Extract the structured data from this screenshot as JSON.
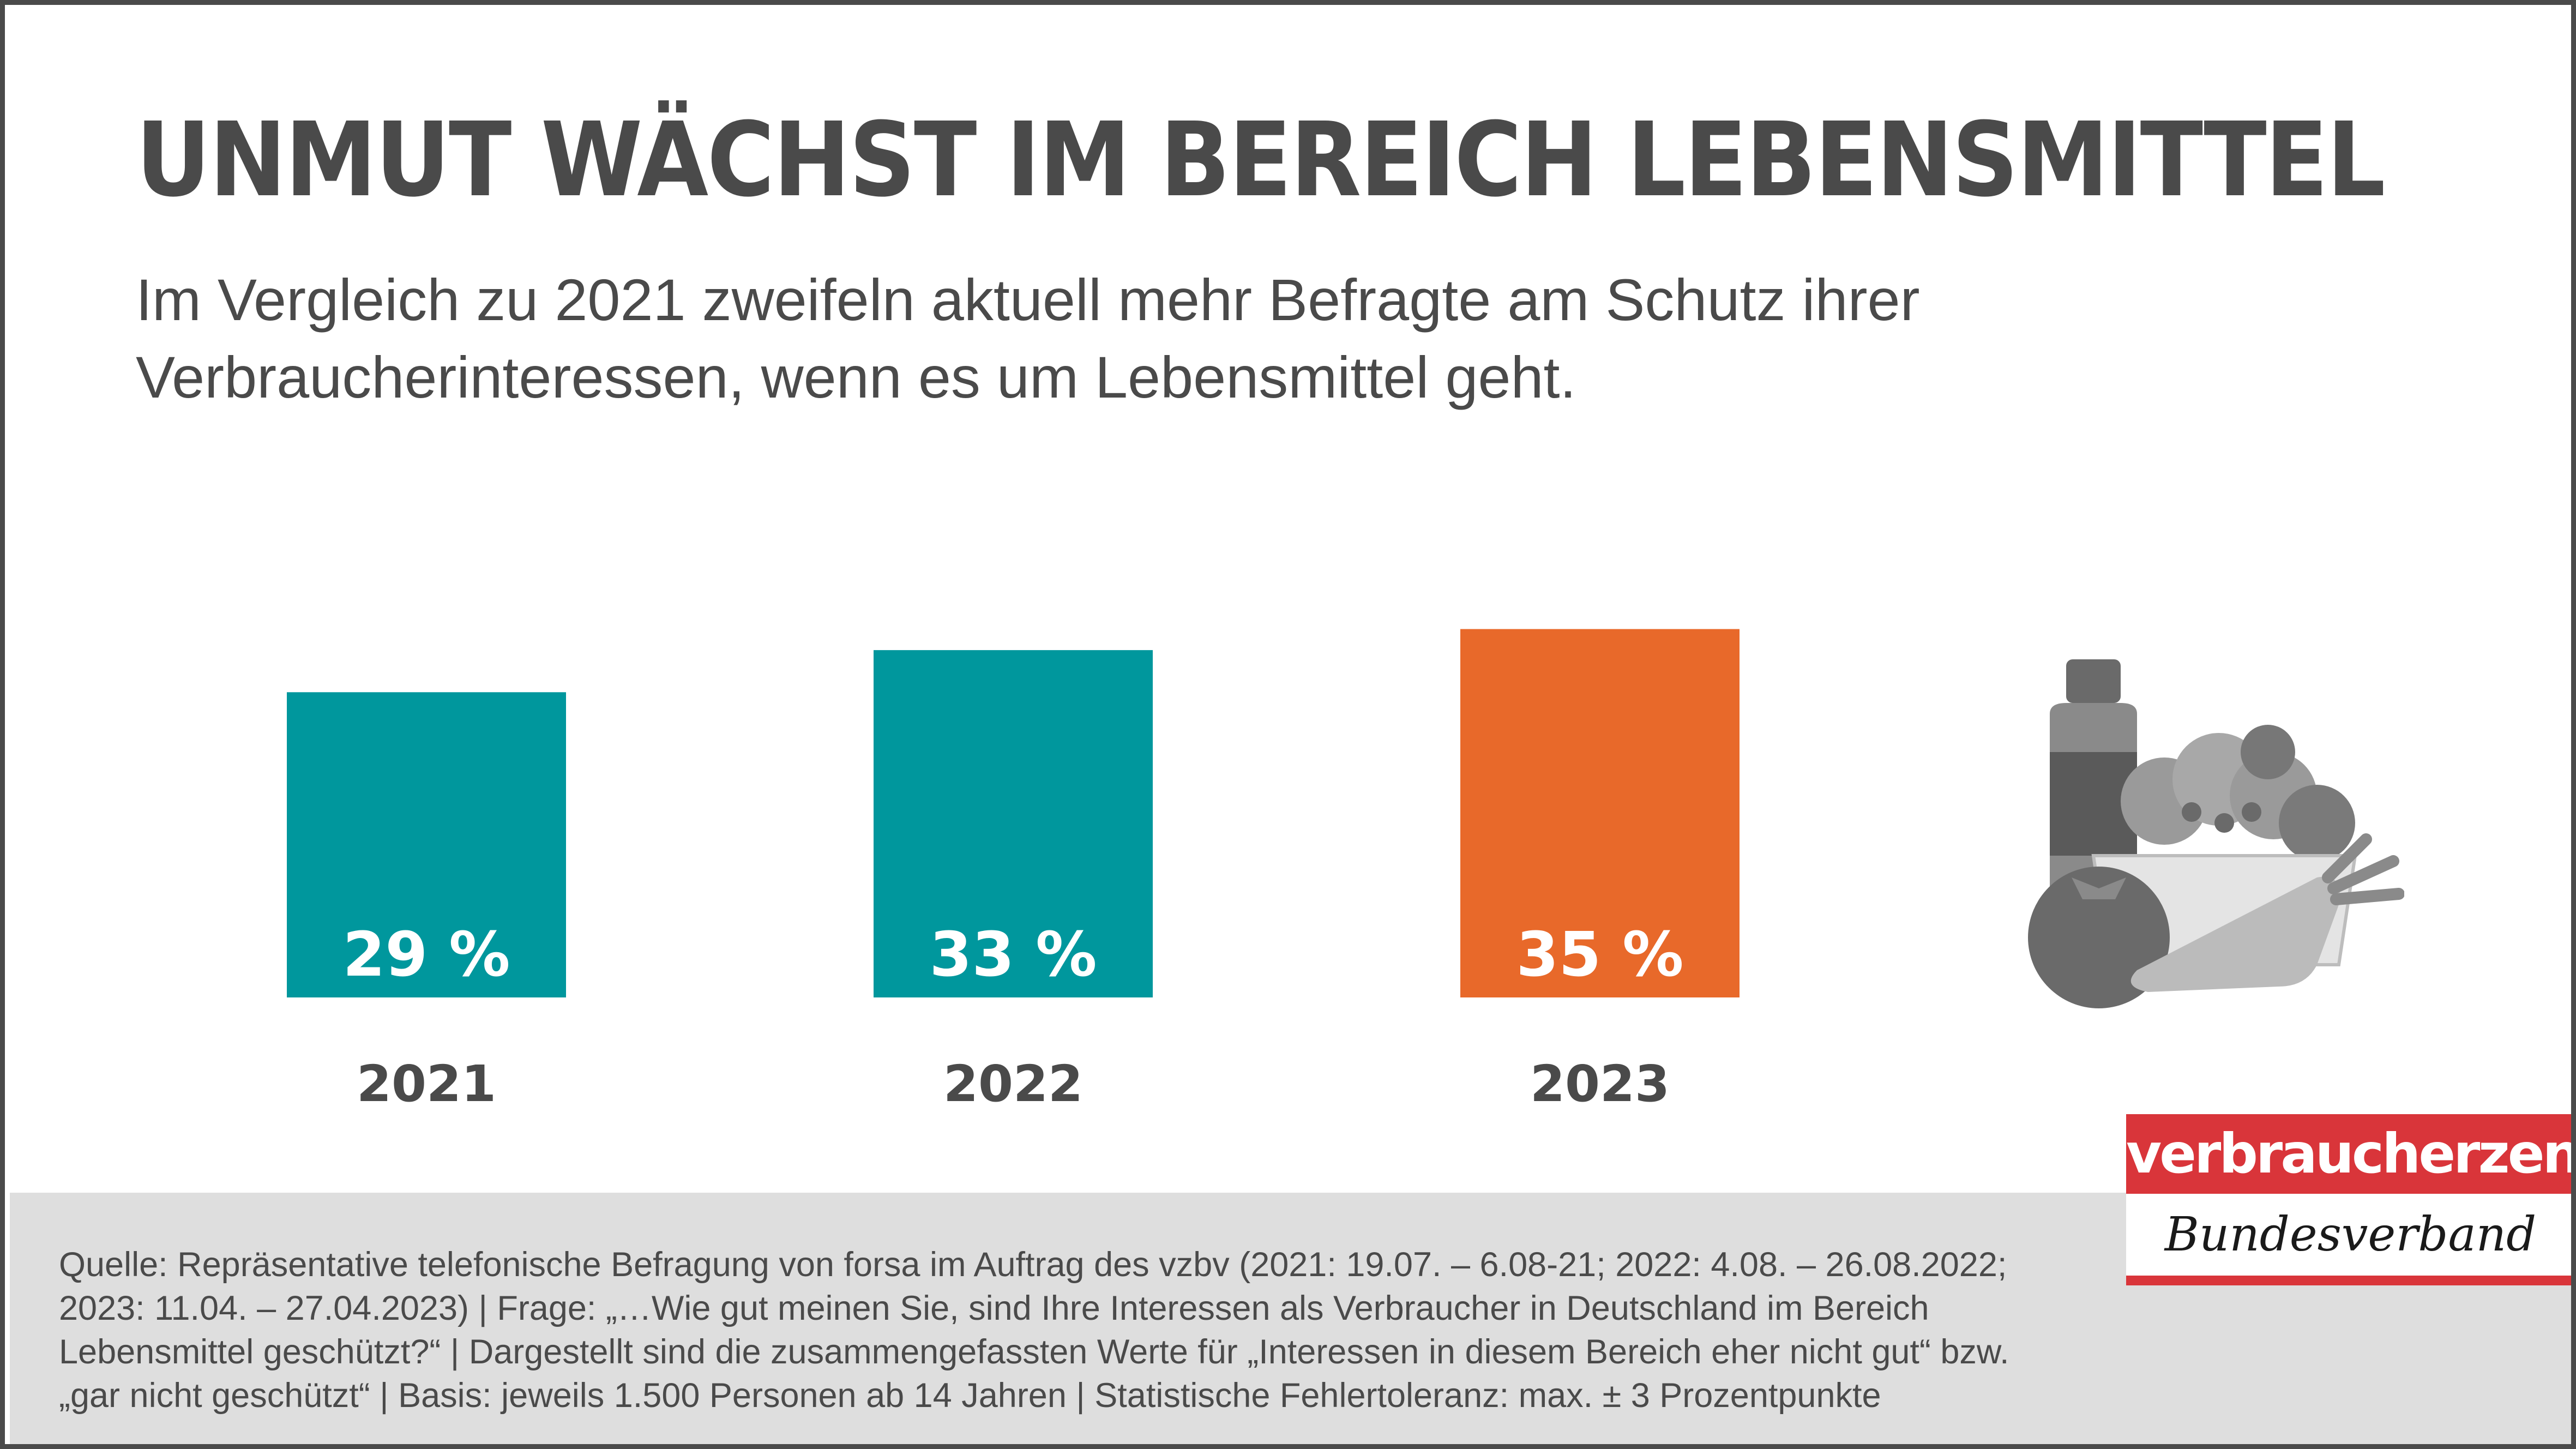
{
  "header": {
    "title": "UNMUT WÄCHST IM BEREICH LEBENSMITTEL",
    "subtitle": "Im Vergleich zu 2021 zweifeln aktuell mehr Befragte am Schutz ihrer Verbraucherinteressen, wenn es um Lebensmittel geht."
  },
  "chart_data": {
    "type": "bar",
    "categories": [
      "2021",
      "2022",
      "2023"
    ],
    "values": [
      29,
      33,
      35
    ],
    "value_labels": [
      "29 %",
      "33 %",
      "35 %"
    ],
    "colors": [
      "#00979d",
      "#00979d",
      "#e8692a"
    ],
    "unit": "%",
    "grid": false,
    "legend": "none"
  },
  "footer": {
    "source": "Quelle: Repräsentative telefonische Befragung von forsa im Auftrag des vzbv (2021: 19.07. – 6.08-21; 2022: 4.08. – 26.08.2022; 2023: 11.04. – 27.04.2023) | Frage: „…Wie gut meinen Sie, sind Ihre Interessen als Verbraucher in Deutschland im Bereich Lebensmittel geschützt?“ | Dargestellt sind die zusammengefassten Werte für „Interessen in diesem Bereich eher nicht gut“ bzw. „gar nicht geschützt“ | Basis: jeweils 1.500 Personen ab 14 Jahren | Statistische Fehlertoleranz: max. ± 3 Prozentpunkte"
  },
  "logo": {
    "line1": "verbraucherzentrale",
    "line2": "Bundesverband",
    "color": "#d9353a"
  },
  "icons": {
    "illustration": "groceries-icon"
  }
}
